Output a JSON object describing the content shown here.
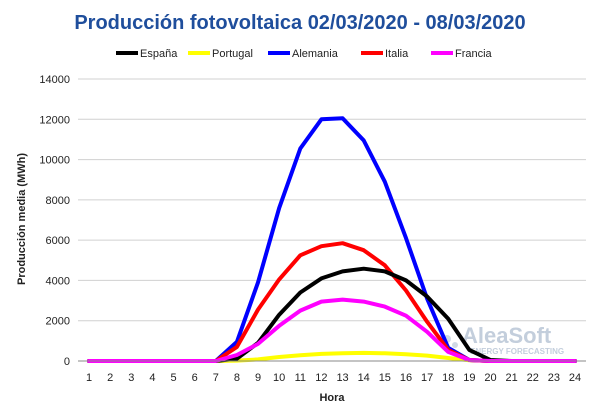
{
  "chart_data": {
    "type": "line",
    "title": "Producción fotovoltaica 02/03/2020 - 08/03/2020",
    "xlabel": "Hora",
    "ylabel": "Producción media (MWh)",
    "x": [
      1,
      2,
      3,
      4,
      5,
      6,
      7,
      8,
      9,
      10,
      11,
      12,
      13,
      14,
      15,
      16,
      17,
      18,
      19,
      20,
      21,
      22,
      23,
      24
    ],
    "xlim": [
      1,
      24
    ],
    "ylim": [
      0,
      14000
    ],
    "yticks": [
      0,
      2000,
      4000,
      6000,
      8000,
      10000,
      12000,
      14000
    ],
    "ytick_labels": [
      "0",
      "2000",
      "4000",
      "6000",
      "8000",
      "10000",
      "12000",
      "14000"
    ],
    "xtick_labels": [
      "1",
      "2",
      "3",
      "4",
      "5",
      "6",
      "7",
      "8",
      "9",
      "10",
      "11",
      "12",
      "13",
      "14",
      "15",
      "16",
      "17",
      "18",
      "19",
      "20",
      "21",
      "22",
      "23",
      "24"
    ],
    "grid": "horizontal",
    "legend_position": "top",
    "series": [
      {
        "name": "España",
        "color": "#000000",
        "values": [
          0,
          0,
          0,
          0,
          0,
          0,
          0,
          120,
          900,
          2300,
          3400,
          4100,
          4450,
          4580,
          4450,
          4000,
          3200,
          2100,
          550,
          50,
          0,
          0,
          0,
          0
        ]
      },
      {
        "name": "Portugal",
        "color": "#ffff00",
        "values": [
          0,
          0,
          0,
          0,
          0,
          0,
          0,
          20,
          80,
          200,
          290,
          350,
          380,
          400,
          380,
          340,
          270,
          150,
          40,
          0,
          0,
          0,
          0,
          0
        ]
      },
      {
        "name": "Alemania",
        "color": "#0000ff",
        "values": [
          0,
          0,
          0,
          0,
          0,
          0,
          0,
          950,
          3900,
          7600,
          10550,
          12000,
          12050,
          10950,
          8900,
          6100,
          3100,
          650,
          50,
          0,
          0,
          0,
          0,
          0
        ]
      },
      {
        "name": "Italia",
        "color": "#ff0000",
        "values": [
          0,
          0,
          0,
          0,
          0,
          0,
          0,
          700,
          2550,
          4050,
          5250,
          5700,
          5850,
          5500,
          4750,
          3500,
          1950,
          550,
          50,
          0,
          0,
          0,
          0,
          0
        ]
      },
      {
        "name": "Francia",
        "color": "#ff00ff",
        "values": [
          0,
          0,
          0,
          0,
          0,
          0,
          0,
          300,
          850,
          1750,
          2500,
          2950,
          3050,
          2950,
          2700,
          2250,
          1450,
          450,
          50,
          0,
          0,
          0,
          0,
          0
        ]
      }
    ]
  },
  "watermark": {
    "name": "AleaSoft",
    "tagline": "ENERGY FORECASTING"
  }
}
